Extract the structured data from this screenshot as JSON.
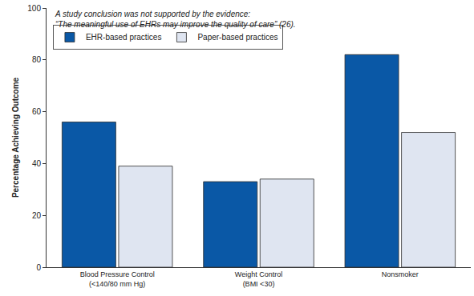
{
  "chart_data": {
    "type": "bar",
    "annotations": [
      "A study conclusion was not supported by the evidence:\n“The meaningful use of EHRs may improve the quality of care” (26)."
    ],
    "y_label": "Percentage Achieving Outcome",
    "categories": [
      "Blood Pressure Control\n(<140/80 mm Hg)",
      "Weight Control\n(BMI <30)",
      "Nonsmoker"
    ],
    "series": [
      {
        "name": "EHR-based practices",
        "color": "#0a58a6",
        "values": [
          56,
          33,
          82
        ]
      },
      {
        "name": "Paper-based practices",
        "color": "#dfe5f1",
        "values": [
          39,
          34,
          52
        ]
      }
    ],
    "ylim": [
      0,
      100
    ],
    "yticks": [
      0,
      20,
      40,
      60,
      80,
      100
    ],
    "grid": false,
    "legend": "upper left"
  }
}
